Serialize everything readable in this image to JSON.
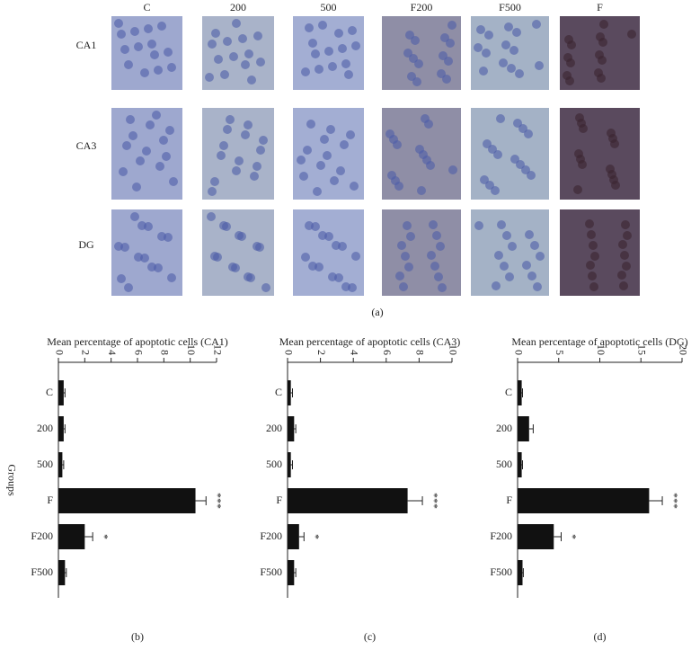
{
  "micrograph_panel": {
    "columns": [
      "C",
      "200",
      "500",
      "F200",
      "F500",
      "F"
    ],
    "rows": [
      "CA1",
      "CA3",
      "DG"
    ],
    "caption": "(a)"
  },
  "chart_data": [
    {
      "type": "hbar",
      "title": "Mean percentage of apoptotic cells (CA1)",
      "y_label": "Groups",
      "caption": "(b)",
      "categories": [
        "C",
        "200",
        "500",
        "F",
        "F200",
        "F500"
      ],
      "values": [
        0.4,
        0.4,
        0.3,
        10.4,
        2.0,
        0.5
      ],
      "errors": [
        0.1,
        0.1,
        0.1,
        0.8,
        0.6,
        0.1
      ],
      "color": "#111111",
      "xlim": [
        0,
        12
      ],
      "xticks": [
        0,
        2,
        4,
        6,
        8,
        10,
        12
      ],
      "annotations": [
        {
          "category": "F",
          "text": "***"
        },
        {
          "category": "F200",
          "text": "*"
        }
      ]
    },
    {
      "type": "hbar",
      "title": "Mean percentage of apoptotic cells (CA3)",
      "caption": "(c)",
      "categories": [
        "C",
        "200",
        "500",
        "F",
        "F200",
        "F500"
      ],
      "values": [
        0.2,
        0.4,
        0.2,
        7.3,
        0.7,
        0.4
      ],
      "errors": [
        0.1,
        0.1,
        0.1,
        0.9,
        0.3,
        0.1
      ],
      "color": "#111111",
      "xlim": [
        0,
        10
      ],
      "xticks": [
        0,
        2,
        4,
        6,
        8,
        10
      ],
      "annotations": [
        {
          "category": "F",
          "text": "***"
        },
        {
          "category": "F200",
          "text": "*"
        }
      ]
    },
    {
      "type": "hbar",
      "title": "Mean percentage of apoptotic cells (DG)",
      "caption": "(d)",
      "categories": [
        "C",
        "200",
        "500",
        "F",
        "F200",
        "F500"
      ],
      "values": [
        0.5,
        1.4,
        0.5,
        16.0,
        4.4,
        0.6
      ],
      "errors": [
        0.1,
        0.5,
        0.1,
        1.6,
        0.9,
        0.1
      ],
      "color": "#111111",
      "xlim": [
        0,
        20
      ],
      "xticks": [
        0,
        5,
        10,
        15,
        20
      ],
      "annotations": [
        {
          "category": "F",
          "text": "***"
        },
        {
          "category": "F200",
          "text": "*"
        }
      ]
    }
  ]
}
